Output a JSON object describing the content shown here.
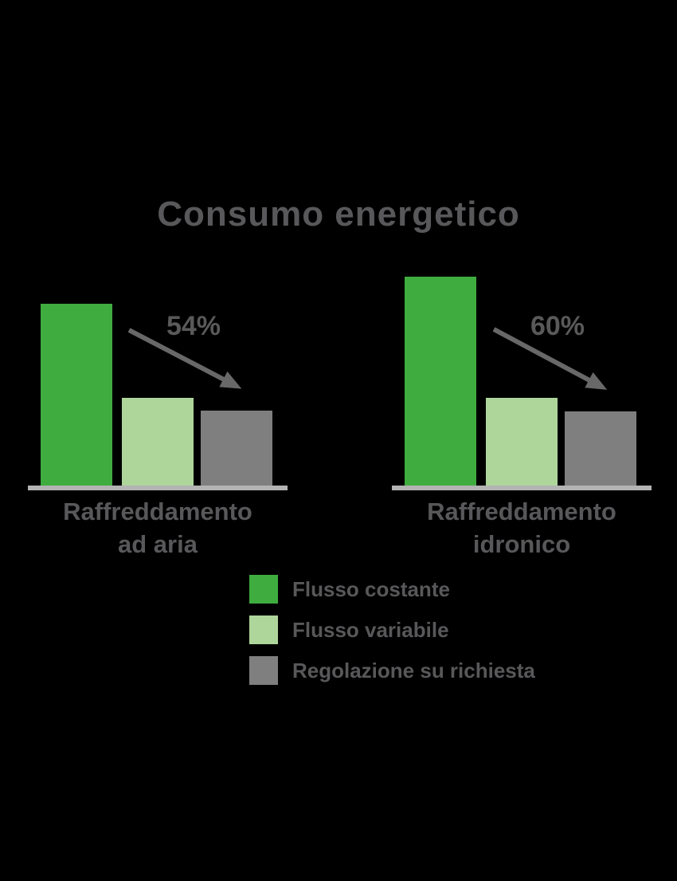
{
  "title": "Consumo energetico",
  "chart_data": {
    "type": "bar",
    "title": "Consumo energetico",
    "series_names": [
      "Flusso costante",
      "Flusso variabile",
      "Regolazione su richiesta"
    ],
    "series_colors": [
      "#3fac40",
      "#aed69b",
      "#7f7f7f"
    ],
    "value_note": "relative energy consumption, tallest bar = 100 (no numeric axis shown)",
    "groups": [
      {
        "label_line1": "Raffreddamento",
        "label_line2": "ad aria",
        "values": [
          87,
          42,
          36
        ],
        "reduction_label": "54%"
      },
      {
        "label_line1": "Raffreddamento",
        "label_line2": "idronico",
        "values": [
          100,
          42,
          35.5
        ],
        "reduction_label": "60%"
      }
    ],
    "axis": "none",
    "grid": false,
    "legend_position": "bottom-center"
  },
  "legend": {
    "items": [
      {
        "label": "Flusso costante",
        "color": "#3fac40"
      },
      {
        "label": "Flusso variabile",
        "color": "#aed69b"
      },
      {
        "label": "Regolazione su richiesta",
        "color": "#7f7f7f"
      }
    ]
  },
  "colors": {
    "background": "#000000",
    "text": "#58585a",
    "arrow": "#686868",
    "baseline": "#b3b3b3"
  }
}
